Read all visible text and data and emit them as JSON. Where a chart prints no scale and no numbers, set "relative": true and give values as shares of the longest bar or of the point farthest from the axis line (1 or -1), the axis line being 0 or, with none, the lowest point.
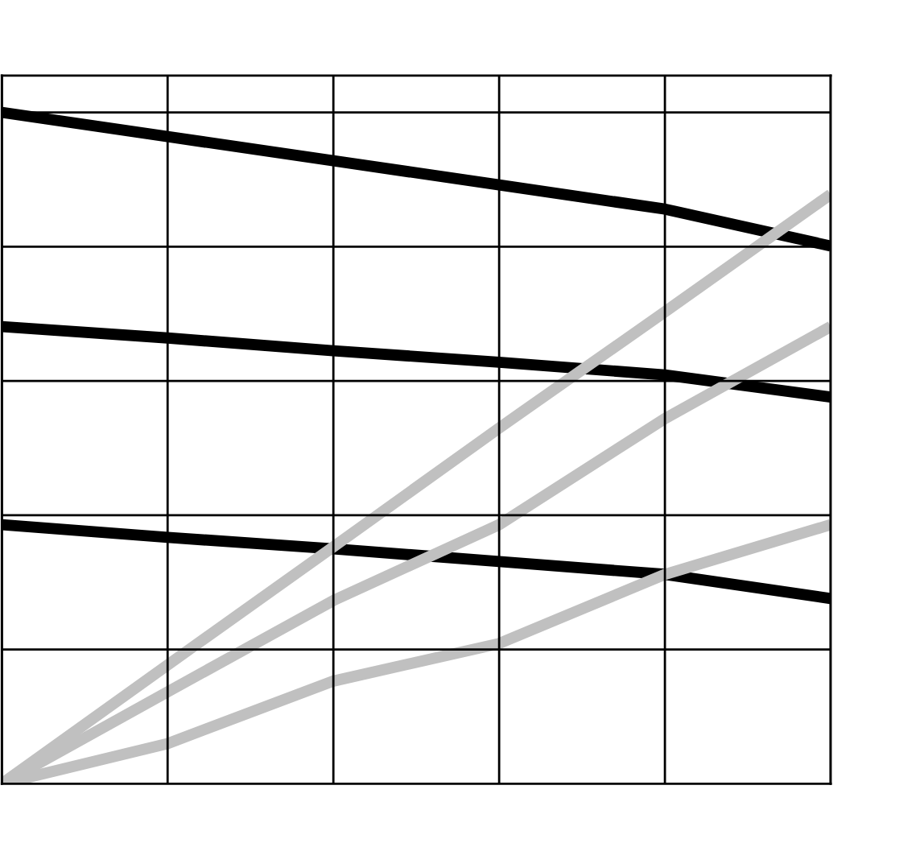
{
  "chart_data": {
    "type": "line",
    "relative": true,
    "grid": true,
    "line_style": "solid",
    "marker": "none",
    "categories": [
      null,
      null,
      null,
      null,
      null,
      null
    ],
    "series": [
      {
        "color": "#000000",
        "values": [
          1,
          0.964,
          0.928,
          0.892,
          0.856,
          0.801
        ]
      },
      {
        "color": "#000000",
        "values": [
          0.681,
          0.664,
          0.645,
          0.628,
          0.609,
          0.576
        ]
      },
      {
        "color": "#000000",
        "values": [
          0.386,
          0.367,
          0.35,
          0.331,
          0.312,
          0.276
        ]
      },
      {
        "color": "#c0c0c0",
        "values": [
          0,
          0.177,
          0.353,
          0.53,
          0.703,
          0.878
        ]
      },
      {
        "color": "#c0c0c0",
        "values": [
          0,
          0.137,
          0.273,
          0.386,
          0.544,
          0.681
        ]
      },
      {
        "color": "#c0c0c0",
        "values": [
          0,
          0.06,
          0.153,
          0.209,
          0.312,
          0.386
        ]
      }
    ]
  }
}
